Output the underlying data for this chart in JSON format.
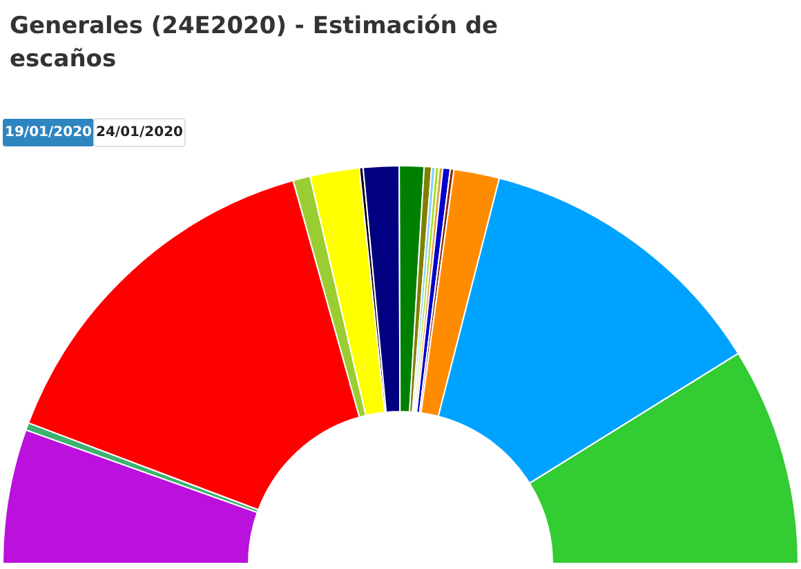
{
  "chart_data": {
    "type": "donut",
    "title": "Generales (24E2020) - Estimación de escaños",
    "annotations": [
      "19/01/2020",
      "24/01/2020"
    ],
    "categories": [
      null,
      null,
      null,
      null,
      null,
      null,
      null,
      null,
      null,
      null,
      null,
      null,
      null,
      null,
      null,
      null,
      null
    ],
    "values": [
      10.9,
      0.6,
      29.8,
      1.4,
      4,
      0.3,
      2.9,
      2,
      0.6,
      0.3,
      0.3,
      0.3,
      0.6,
      0.3,
      3.7,
      24.3,
      17.7
    ],
    "colors": [
      "#bb11dd",
      "#3cb371",
      "#ff0000",
      "#9acd32",
      "#ffff00",
      "#000000",
      "#000080",
      "#008000",
      "#808000",
      "#87cefa",
      "#a6e01a",
      "#e0a040",
      "#0000cd",
      "#8b2a10",
      "#ff8c00",
      "#00a2ff",
      "#33cc33"
    ]
  }
}
